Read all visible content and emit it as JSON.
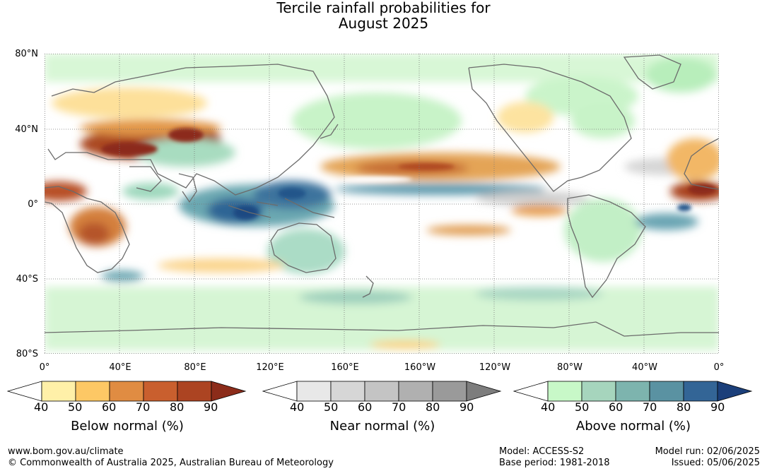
{
  "title": {
    "line1": "Tercile rainfall probabilities for",
    "line2": "August 2025"
  },
  "map": {
    "lat_labels": [
      "80°N",
      "40°N",
      "0°",
      "40°S",
      "80°S"
    ],
    "lon_labels": [
      "0°",
      "40°E",
      "80°E",
      "120°E",
      "160°E",
      "160°W",
      "120°W",
      "80°W",
      "40°W",
      "0°"
    ],
    "colors": {
      "ocean": "#ffffff",
      "coast": "#6b6b6b",
      "grid": "#777777"
    }
  },
  "legends": [
    {
      "title": "Below normal (%)",
      "ticks": [
        "40",
        "50",
        "60",
        "70",
        "80",
        "90"
      ],
      "colors": [
        "#ffffff",
        "#fff0a8",
        "#fdc865",
        "#e08c42",
        "#c95f2e",
        "#ac4422",
        "#8c2c1a"
      ]
    },
    {
      "title": "Near normal (%)",
      "ticks": [
        "40",
        "50",
        "60",
        "70",
        "80",
        "90"
      ],
      "colors": [
        "#ffffff",
        "#e8e8e8",
        "#d6d6d6",
        "#c4c4c4",
        "#b0b0b0",
        "#9a9a9a",
        "#7d7d7d"
      ]
    },
    {
      "title": "Above normal (%)",
      "ticks": [
        "40",
        "50",
        "60",
        "70",
        "80",
        "90"
      ],
      "colors": [
        "#ffffff",
        "#c8f8c8",
        "#a6d5bd",
        "#7db4ae",
        "#5a92a2",
        "#336596",
        "#1b3f7a"
      ]
    }
  ],
  "footer": {
    "url": "www.bom.gov.au/climate",
    "copyright": "© Commonwealth of Australia 2025, Australian Bureau of Meteorology",
    "model": "Model: ACCESS-S2",
    "base_period": "Base period: 1981-2018",
    "model_run": "Model run: 02/06/2025",
    "issued": "Issued: 05/06/2025"
  }
}
